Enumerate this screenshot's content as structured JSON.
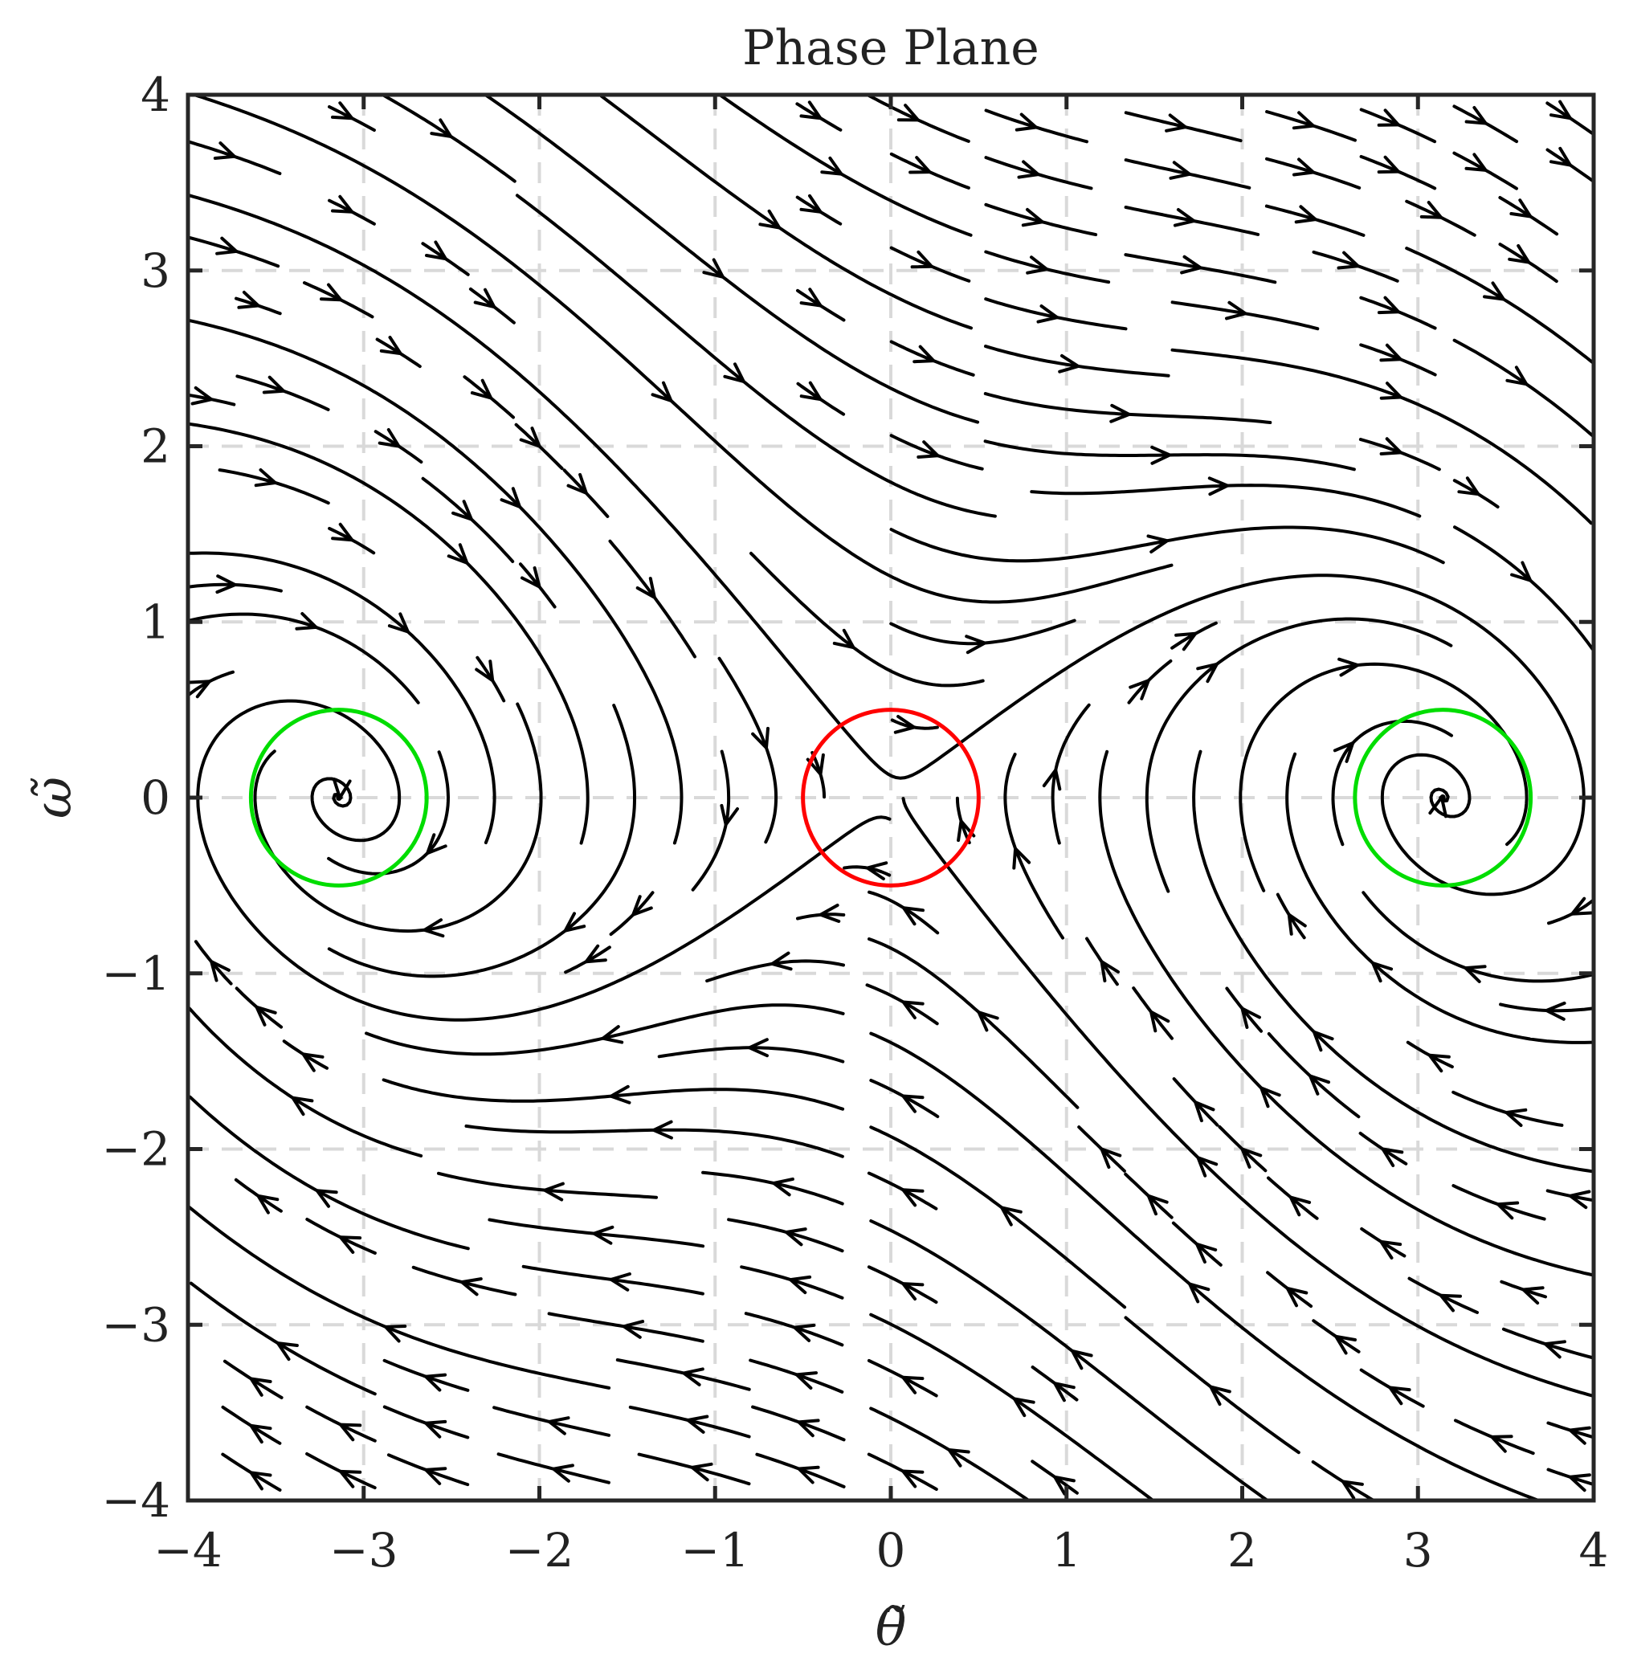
{
  "chart_data": {
    "type": "streamplot",
    "title": "Phase Plane",
    "xlabel": "θ̃",
    "ylabel": "ω̃",
    "xlim": [
      -4,
      4
    ],
    "ylim": [
      -4,
      4
    ],
    "xticks": [
      -4,
      -3,
      -2,
      -1,
      0,
      1,
      2,
      3,
      4
    ],
    "yticks": [
      -4,
      -3,
      -2,
      -1,
      0,
      1,
      2,
      3,
      4
    ],
    "xtick_labels": [
      "−4",
      "−3",
      "−2",
      "−1",
      "0",
      "1",
      "2",
      "3",
      "4"
    ],
    "ytick_labels": [
      "−4",
      "−3",
      "−2",
      "−1",
      "0",
      "1",
      "2",
      "3",
      "4"
    ],
    "grid": true,
    "vector_field": {
      "dtheta": "omega",
      "domega": "sin(theta) - 0.5*omega"
    },
    "markers": [
      {
        "kind": "circle",
        "center": [
          0,
          0
        ],
        "radius": 0.5,
        "color": "#ff0000"
      },
      {
        "kind": "circle",
        "center": [
          -3.1416,
          0
        ],
        "radius": 0.5,
        "color": "#00dd00"
      },
      {
        "kind": "circle",
        "center": [
          3.1416,
          0
        ],
        "radius": 0.5,
        "color": "#00dd00"
      }
    ],
    "colors": {
      "streamline": "#000000",
      "grid": "#d9d9d9",
      "axes": "#262626"
    }
  }
}
